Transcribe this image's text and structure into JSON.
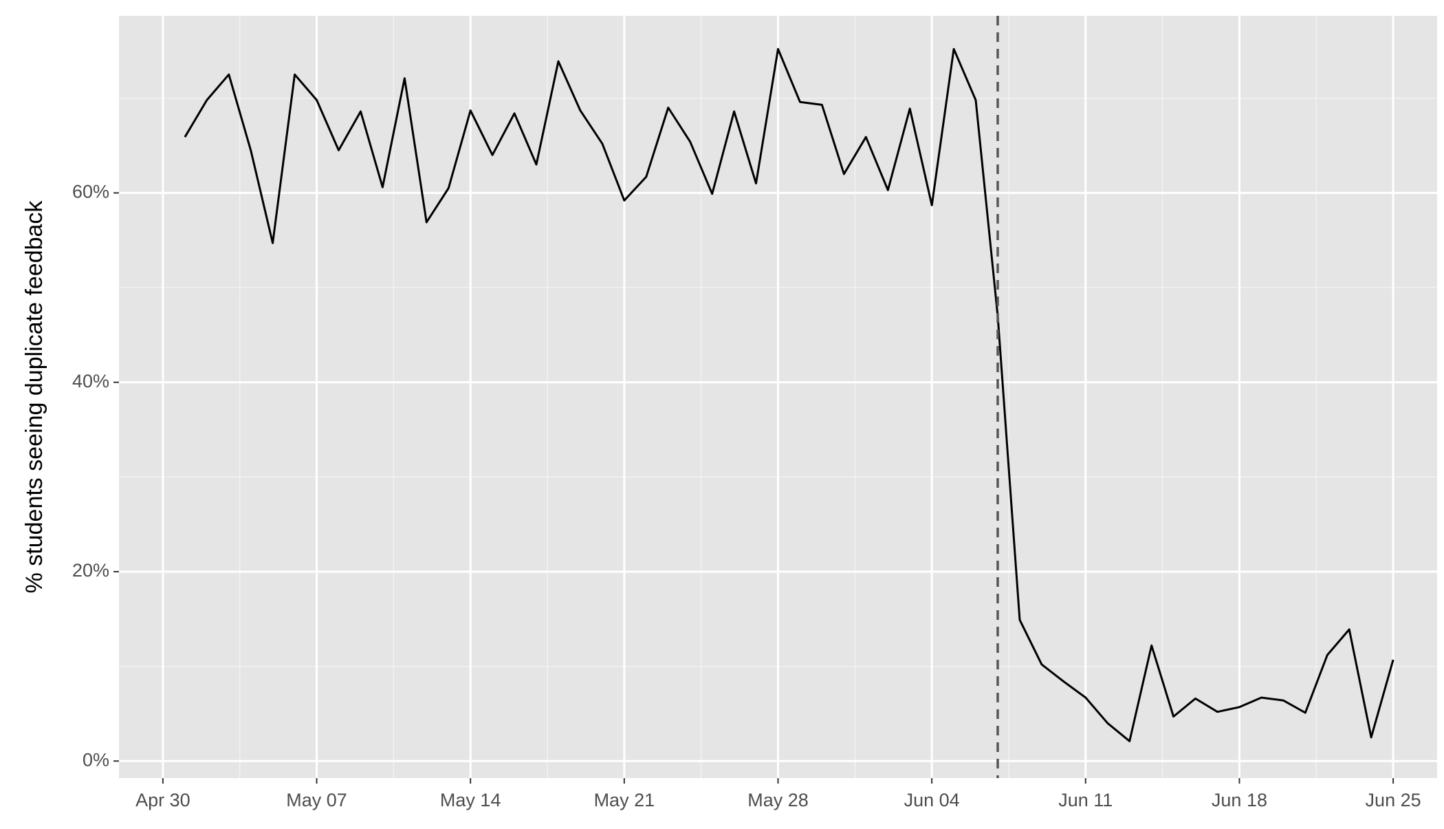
{
  "chart_data": {
    "type": "line",
    "y_label": "% students seeing duplicate feedback",
    "x": [
      "May 01",
      "May 02",
      "May 03",
      "May 04",
      "May 05",
      "May 06",
      "May 07",
      "May 08",
      "May 09",
      "May 10",
      "May 11",
      "May 12",
      "May 13",
      "May 14",
      "May 15",
      "May 16",
      "May 17",
      "May 18",
      "May 19",
      "May 20",
      "May 21",
      "May 22",
      "May 23",
      "May 24",
      "May 25",
      "May 26",
      "May 27",
      "May 28",
      "May 29",
      "May 30",
      "May 31",
      "Jun 01",
      "Jun 02",
      "Jun 03",
      "Jun 04",
      "Jun 05",
      "Jun 06",
      "Jun 07",
      "Jun 08",
      "Jun 09",
      "Jun 10",
      "Jun 11",
      "Jun 12",
      "Jun 13",
      "Jun 14",
      "Jun 15",
      "Jun 16",
      "Jun 17",
      "Jun 18",
      "Jun 19",
      "Jun 20",
      "Jun 21",
      "Jun 22",
      "Jun 23",
      "Jun 24",
      "Jun 25"
    ],
    "values": [
      65.9,
      69.8,
      72.5,
      64.5,
      54.7,
      72.5,
      69.8,
      64.5,
      68.6,
      60.6,
      72.1,
      56.9,
      60.5,
      68.7,
      64.0,
      68.4,
      63.0,
      73.9,
      68.7,
      65.2,
      59.2,
      61.7,
      69.0,
      65.4,
      59.9,
      68.6,
      61.0,
      75.2,
      69.6,
      69.3,
      62.0,
      65.9,
      60.3,
      68.9,
      58.7,
      75.2,
      69.8,
      47.0,
      14.9,
      10.2,
      8.4,
      6.7,
      4.0,
      2.1,
      12.2,
      4.7,
      6.6,
      5.2,
      5.7,
      6.7,
      6.4,
      5.1,
      11.2,
      13.9,
      2.5,
      10.7
    ],
    "color": "#000000",
    "xlim": [
      "Apr 28",
      "Jun 27"
    ],
    "xticks": [
      "Apr 30",
      "May 07",
      "May 14",
      "May 21",
      "May 28",
      "Jun 04",
      "Jun 11",
      "Jun 18",
      "Jun 25"
    ],
    "ylim": [
      -1.8,
      78.7
    ],
    "yticks": [
      {
        "value": 0,
        "label": "0%"
      },
      {
        "value": 20,
        "label": "20%"
      },
      {
        "value": 40,
        "label": "40%"
      },
      {
        "value": 60,
        "label": "60%"
      }
    ],
    "grid": true,
    "vline": {
      "x": "Jun 07",
      "color": "#555555",
      "dashed": true
    }
  }
}
